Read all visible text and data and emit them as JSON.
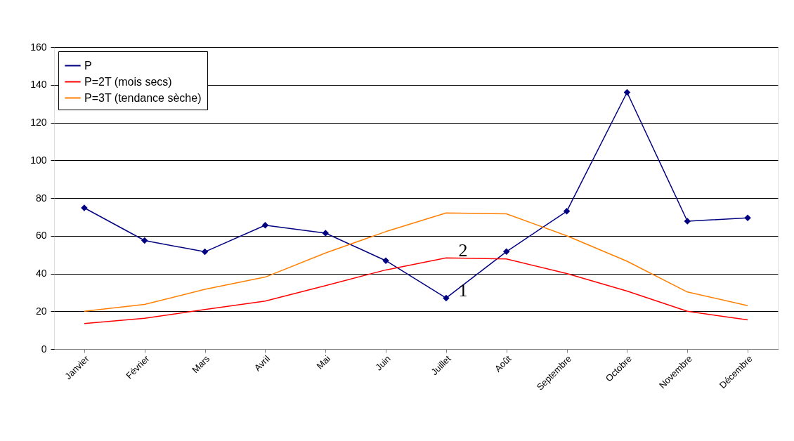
{
  "chart_data": {
    "type": "line",
    "categories": [
      "Janvier",
      "Février",
      "Mars",
      "Avril",
      "Mai",
      "Juin",
      "Juillet",
      "Août",
      "Septembre",
      "Octobre",
      "Novembre",
      "Décembre"
    ],
    "series": [
      {
        "name": "P",
        "color": "#000080",
        "marker": "diamond",
        "values": [
          74.8,
          57.5,
          51.5,
          65.6,
          61.4,
          46.8,
          27.0,
          51.6,
          73.0,
          136.0,
          67.7,
          69.5
        ]
      },
      {
        "name": "P=2T (mois secs)",
        "color": "#ff0000",
        "marker": "none",
        "values": [
          13.5,
          16.3,
          20.9,
          25.4,
          33.6,
          41.9,
          48.3,
          47.7,
          40.0,
          30.7,
          20.0,
          15.4
        ]
      },
      {
        "name": "P=3T (tendance sèche)",
        "color": "#ff7f00",
        "marker": "none",
        "values": [
          20.0,
          23.6,
          31.6,
          38.1,
          50.9,
          62.2,
          72.1,
          71.6,
          60.0,
          46.5,
          30.2,
          23.0
        ]
      }
    ],
    "ylim": [
      0,
      160
    ],
    "yticks": [
      0,
      20,
      40,
      60,
      80,
      100,
      120,
      140,
      160
    ],
    "grid": "y",
    "legend": "top left",
    "line_style": "solid",
    "annotations": [
      {
        "text": "2",
        "x": "Juillet",
        "y": 48.3
      },
      {
        "text": "1",
        "x": "Juillet",
        "y": 27.0
      }
    ]
  }
}
